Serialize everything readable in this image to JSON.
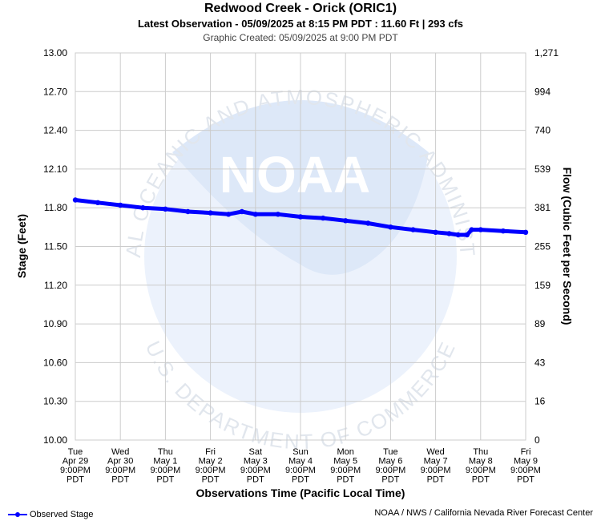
{
  "header": {
    "title": "Redwood Creek - Orick (ORIC1)",
    "subtitle": "Latest Observation - 05/09/2025 at 8:15 PM PDT : 11.60 Ft | 293 cfs",
    "created": "Graphic Created: 05/09/2025 at 9:00 PM PDT"
  },
  "watermark": {
    "logo_text": "NOAA",
    "ring_top": "NATIONAL OCEANIC AND ATMOSPHERIC ADMINISTRATION",
    "ring_bottom": "U.S. DEPARTMENT OF COMMERCE"
  },
  "legend": {
    "label": "Observed Stage"
  },
  "footer": {
    "credit": "NOAA / NWS / California Nevada River Forecast Center"
  },
  "colors": {
    "series": "#0000ff",
    "grid": "#cccccc",
    "watermark": "#cfe0f7"
  },
  "chart_data": {
    "type": "line",
    "title": "Redwood Creek - Orick (ORIC1)",
    "xlabel": "Observations Time (Pacific Local Time)",
    "ylabel": "Stage (Feet)",
    "y2label": "Flow (Cubic Feet per Second)",
    "ylim": [
      10.0,
      13.0
    ],
    "grid": true,
    "yticks": [
      "13.00",
      "12.70",
      "12.40",
      "12.10",
      "11.80",
      "11.50",
      "11.20",
      "10.90",
      "10.60",
      "10.30",
      "10.00"
    ],
    "yticks_values": [
      13.0,
      12.7,
      12.4,
      12.1,
      11.8,
      11.5,
      11.2,
      10.9,
      10.6,
      10.3,
      10.0
    ],
    "y2ticks": [
      "1,271",
      "994",
      "740",
      "539",
      "381",
      "255",
      "159",
      "89",
      "43",
      "16",
      "0"
    ],
    "xlim_days": [
      0,
      10
    ],
    "xticks": [
      [
        "Tue",
        "Apr 29",
        "9:00PM",
        "PDT"
      ],
      [
        "Wed",
        "Apr 30",
        "9:00PM",
        "PDT"
      ],
      [
        "Thu",
        "May 1",
        "9:00PM",
        "PDT"
      ],
      [
        "Fri",
        "May 2",
        "9:00PM",
        "PDT"
      ],
      [
        "Sat",
        "May 3",
        "9:00PM",
        "PDT"
      ],
      [
        "Sun",
        "May 4",
        "9:00PM",
        "PDT"
      ],
      [
        "Mon",
        "May 5",
        "9:00PM",
        "PDT"
      ],
      [
        "Tue",
        "May 6",
        "9:00PM",
        "PDT"
      ],
      [
        "Wed",
        "May 7",
        "9:00PM",
        "PDT"
      ],
      [
        "Thu",
        "May 8",
        "9:00PM",
        "PDT"
      ],
      [
        "Fri",
        "May 9",
        "9:00PM",
        "PDT"
      ]
    ],
    "series": [
      {
        "name": "Observed Stage",
        "x": [
          0.0,
          0.5,
          1.0,
          1.5,
          2.0,
          2.5,
          3.0,
          3.4,
          3.7,
          4.0,
          4.5,
          5.0,
          5.5,
          6.0,
          6.5,
          7.0,
          7.5,
          8.0,
          8.3,
          8.5,
          8.7,
          8.8,
          9.0,
          9.5,
          10.0
        ],
        "y": [
          11.86,
          11.84,
          11.82,
          11.8,
          11.79,
          11.77,
          11.76,
          11.75,
          11.77,
          11.75,
          11.75,
          11.73,
          11.72,
          11.7,
          11.68,
          11.65,
          11.63,
          11.61,
          11.6,
          11.59,
          11.59,
          11.63,
          11.63,
          11.62,
          11.61
        ]
      }
    ]
  }
}
